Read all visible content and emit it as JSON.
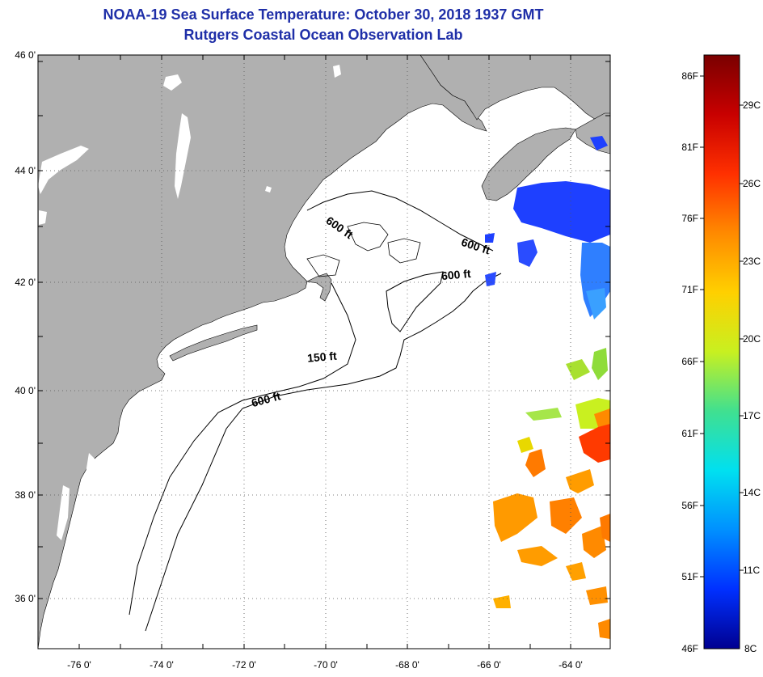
{
  "header": {
    "title": "NOAA-19 Sea Surface Temperature:  October 30, 2018 1937 GMT",
    "subtitle": "Rutgers Coastal Ocean Observation Lab"
  },
  "map": {
    "lat_labels": [
      "46 0'",
      "44 0'",
      "42 0'",
      "40 0'",
      "38 0'",
      "36 0'"
    ],
    "lon_labels": [
      "-76 0'",
      "-74 0'",
      "-72 0'",
      "-70 0'",
      "-68 0'",
      "-66 0'",
      "-64 0'"
    ],
    "contours": [
      "600 ft",
      "600 ft",
      "600 ft",
      "150 ft",
      "600 ft"
    ],
    "land_color": "#b0b0b0",
    "ocean_color": "#ffffff"
  },
  "colorbar": {
    "f_labels": [
      "86F",
      "81F",
      "76F",
      "71F",
      "66F",
      "61F",
      "56F",
      "51F",
      "46F"
    ],
    "c_labels": [
      "29C",
      "26C",
      "23C",
      "20C",
      "17C",
      "14C",
      "11C",
      "8C"
    ],
    "colors": [
      "#7a0000",
      "#c80000",
      "#ff3000",
      "#ff8a00",
      "#ffd000",
      "#c8f020",
      "#40e090",
      "#00e0f0",
      "#0090ff",
      "#0030ff",
      "#000090"
    ]
  }
}
